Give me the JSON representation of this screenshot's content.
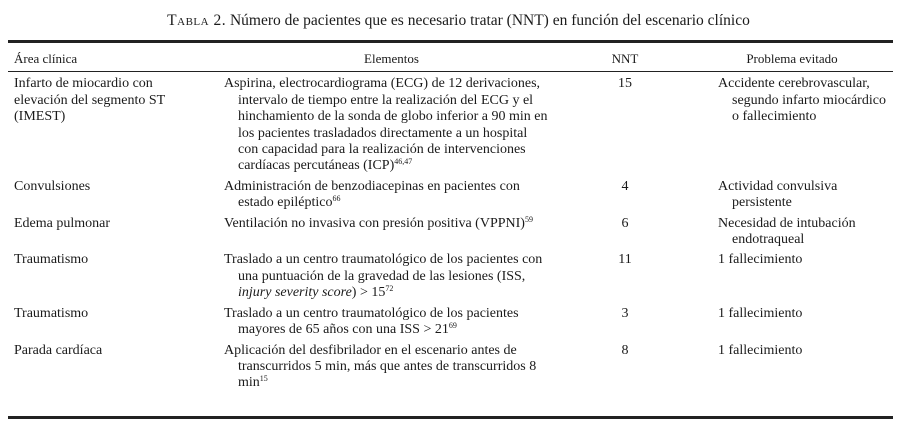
{
  "title": {
    "label": "Tabla 2.",
    "text": "Número de pacientes que es necesario tratar (NNT) en función del escenario clínico"
  },
  "headers": [
    "Área clínica",
    "Elementos",
    "NNT",
    "Problema evitado"
  ],
  "rows": [
    {
      "area": "Infarto de miocardio con elevación del segmento ST (IMEST)",
      "elementos": [
        {
          "t": "Aspirina, electrocardiograma (ECG) de 12 derivaciones, intervalo de tiempo entre la realización del ECG y el hinchamiento de la sonda de globo inferior a 90 min en los pacientes trasladados directamente a un hospital con capacidad para la realización de intervenciones cardíacas percutáneas (ICP)"
        },
        {
          "t": "46,47",
          "s": "sup"
        }
      ],
      "nnt": "15",
      "problema": "Accidente cerebrovascular, segundo infarto miocárdico o fallecimiento"
    },
    {
      "area": "Convulsiones",
      "elementos": [
        {
          "t": "Administración de benzodiacepinas en pacientes con estado epiléptico"
        },
        {
          "t": "66",
          "s": "sup"
        }
      ],
      "nnt": "4",
      "problema": "Actividad convulsiva persistente"
    },
    {
      "area": "Edema pulmonar",
      "elementos": [
        {
          "t": "Ventilación no invasiva con presión positiva (VPPNI)"
        },
        {
          "t": "59",
          "s": "sup"
        }
      ],
      "nnt": "6",
      "problema": "Necesidad de intubación endotraqueal"
    },
    {
      "area": "Traumatismo",
      "elementos": [
        {
          "t": "Traslado a un centro traumatológico de los pacientes con una puntuación de la gravedad de las lesiones (ISS, "
        },
        {
          "t": "injury severity score",
          "s": "i"
        },
        {
          "t": ") > 15"
        },
        {
          "t": "72",
          "s": "sup"
        }
      ],
      "nnt": "11",
      "problema": "1 fallecimiento"
    },
    {
      "area": "Traumatismo",
      "elementos": [
        {
          "t": "Traslado a un centro traumatológico de los pacientes mayores de 65 años con una ISS > 21"
        },
        {
          "t": "69",
          "s": "sup"
        }
      ],
      "nnt": "3",
      "problema": "1 fallecimiento"
    },
    {
      "area": "Parada cardíaca",
      "elementos": [
        {
          "t": "Aplicación del desfibrilador en el escenario antes de transcurridos 5 min, más que antes de transcurridos 8 min"
        },
        {
          "t": "15",
          "s": "sup"
        }
      ],
      "nnt": "8",
      "problema": "1 fallecimiento"
    }
  ]
}
